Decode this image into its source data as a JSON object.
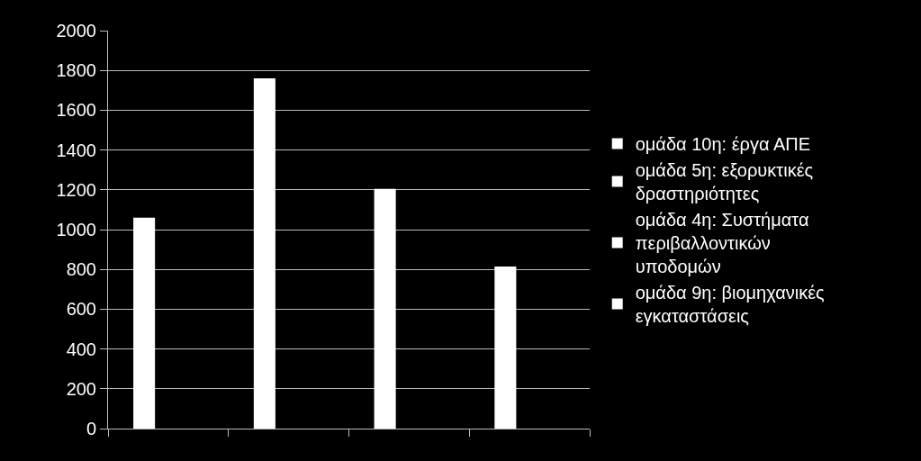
{
  "chart_data": {
    "type": "bar",
    "categories": [
      null,
      null,
      null,
      null
    ],
    "series": [
      {
        "name": "ομάδα 10η: έργα ΑΠΕ",
        "color": "#ffffff",
        "values": [
          1060,
          null,
          null,
          null
        ]
      },
      {
        "name": "ομάδα 5η: εξορυκτικές δραστηριότητες",
        "color": "#ffffff",
        "values": [
          null,
          1760,
          null,
          null
        ]
      },
      {
        "name": "ομάδα 4η: Συστήματα περιβαλλοντικών υποδομών",
        "color": "#ffffff",
        "values": [
          null,
          null,
          1205,
          null
        ]
      },
      {
        "name": "ομάδα 9η: βιομηχανικές εγκαταστάσεις",
        "color": "#ffffff",
        "values": [
          null,
          null,
          null,
          815
        ]
      }
    ],
    "ylim": [
      0,
      2000
    ],
    "yticks": [
      0,
      200,
      400,
      600,
      800,
      1000,
      1200,
      1400,
      1600,
      1800,
      2000
    ],
    "grid": "y",
    "legend": "right",
    "tick_labels": "y"
  }
}
